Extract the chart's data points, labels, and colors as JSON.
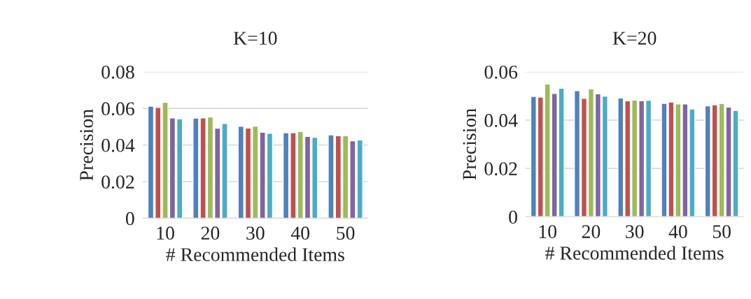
{
  "chart_data": [
    {
      "type": "bar",
      "title": "K=10",
      "xlabel": "# Recommended Items",
      "ylabel": "Precision",
      "categories": [
        "10",
        "20",
        "30",
        "40",
        "50"
      ],
      "ylim": [
        0,
        0.08
      ],
      "yticks": [
        {
          "value": 0,
          "label": "0"
        },
        0.02,
        0.04,
        0.06,
        0.08
      ],
      "grid": "y",
      "series": [
        {
          "color": "#4f81bd",
          "values": [
            0.0612,
            0.0547,
            0.0502,
            0.0467,
            0.0455
          ]
        },
        {
          "color": "#c0504d",
          "values": [
            0.0605,
            0.0548,
            0.0493,
            0.0467,
            0.0451
          ]
        },
        {
          "color": "#9bbb59",
          "values": [
            0.0633,
            0.0553,
            0.0503,
            0.0474,
            0.0451
          ]
        },
        {
          "color": "#8064a2",
          "values": [
            0.0548,
            0.0492,
            0.047,
            0.0447,
            0.0423
          ]
        },
        {
          "color": "#4bacc6",
          "values": [
            0.0543,
            0.0517,
            0.0464,
            0.0442,
            0.0428
          ]
        }
      ]
    },
    {
      "type": "bar",
      "title": "K=20",
      "xlabel": "# Recommended Items",
      "ylabel": "Precision",
      "categories": [
        "10",
        "20",
        "30",
        "40",
        "50"
      ],
      "ylim": [
        0,
        0.06
      ],
      "yticks": [
        {
          "value": 0,
          "label": "0"
        },
        0.02,
        0.04,
        0.06
      ],
      "grid": "y",
      "series": [
        {
          "color": "#4f81bd",
          "values": [
            0.0498,
            0.0522,
            0.0491,
            0.0469,
            0.0459
          ]
        },
        {
          "color": "#c0504d",
          "values": [
            0.0495,
            0.049,
            0.048,
            0.0475,
            0.0463
          ]
        },
        {
          "color": "#9bbb59",
          "values": [
            0.0549,
            0.0529,
            0.0483,
            0.0467,
            0.0468
          ]
        },
        {
          "color": "#8064a2",
          "values": [
            0.051,
            0.0509,
            0.048,
            0.0467,
            0.0454
          ]
        },
        {
          "color": "#4bacc6",
          "values": [
            0.0532,
            0.0499,
            0.0482,
            0.0446,
            0.044
          ]
        }
      ]
    }
  ]
}
